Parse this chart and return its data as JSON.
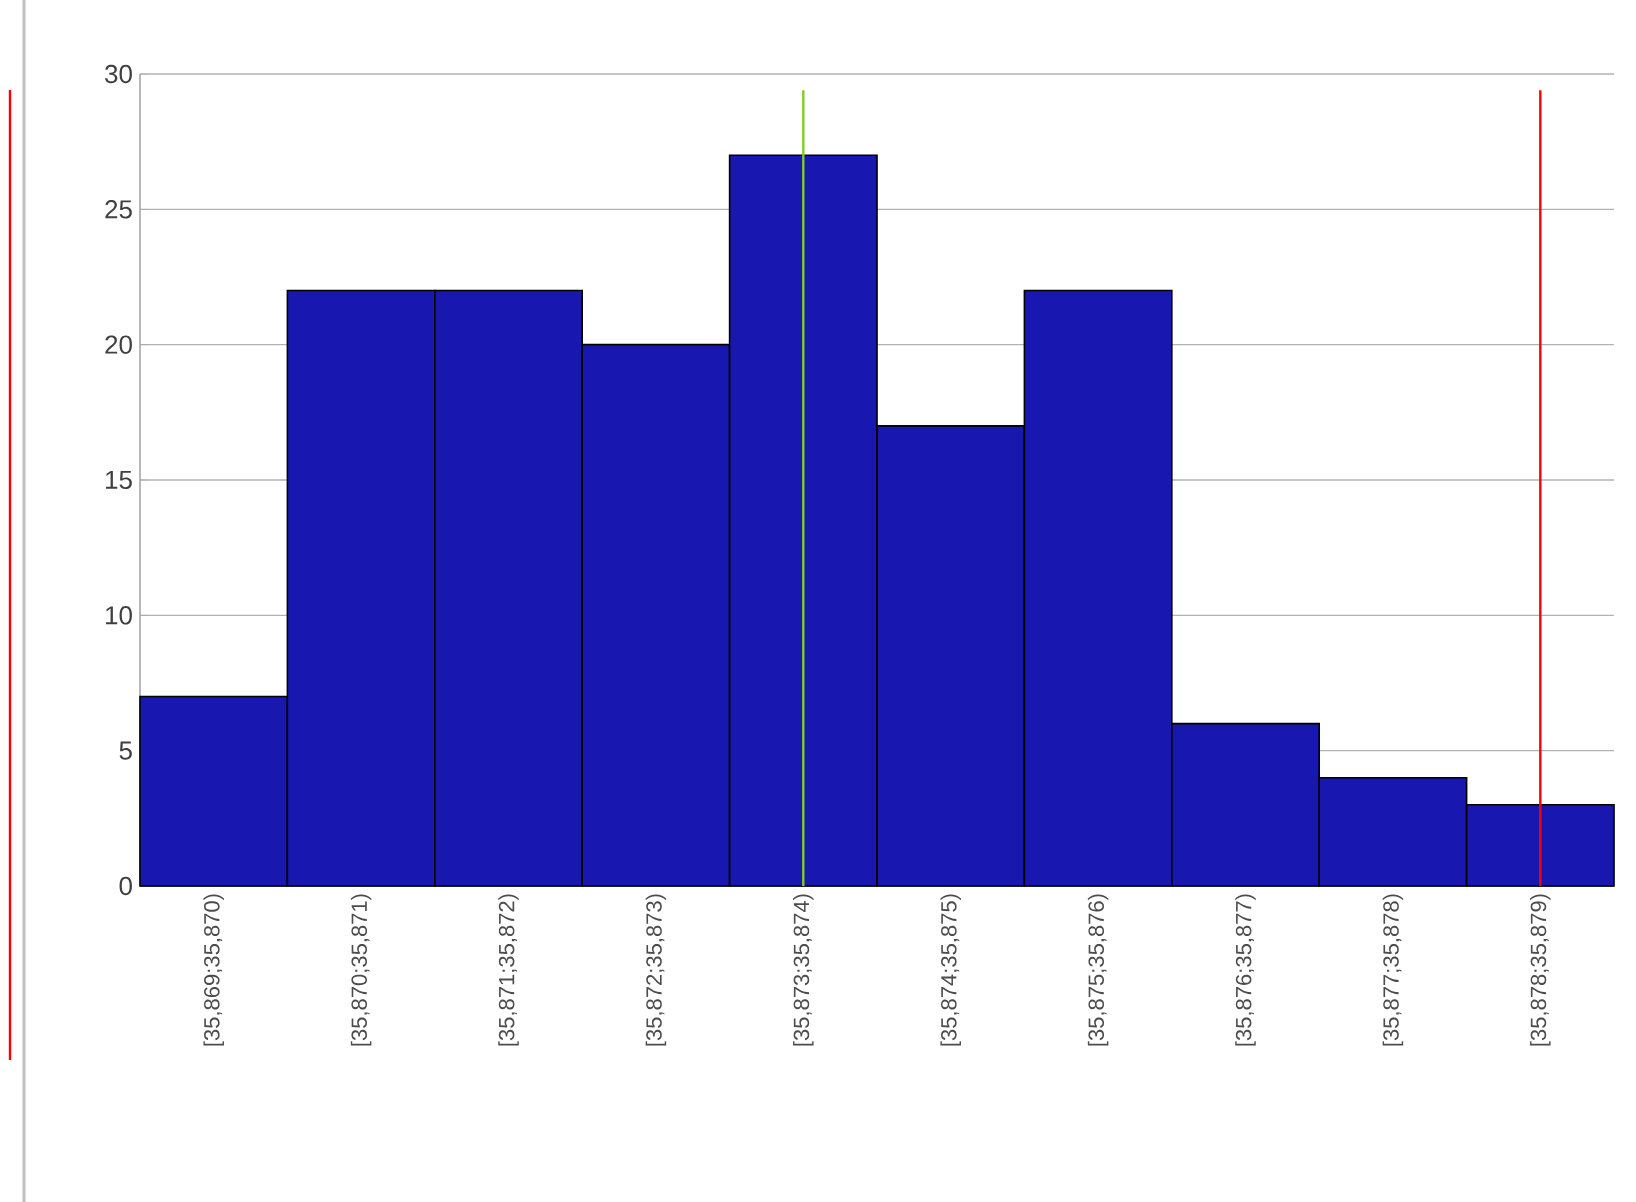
{
  "chart_data": {
    "type": "bar",
    "categories": [
      "[35,869;35,870)",
      "[35,870;35,871)",
      "[35,871;35,872)",
      "[35,872;35,873)",
      "[35,873;35,874)",
      "[35,874;35,875)",
      "[35,875;35,876)",
      "[35,876;35,877)",
      "[35,877;35,878)",
      "[35,878;35,879)"
    ],
    "values": [
      7,
      22,
      22,
      20,
      27,
      17,
      22,
      6,
      4,
      3
    ],
    "color": "#1818b0",
    "ylim": [
      0,
      30
    ],
    "yticks": [
      0,
      5,
      10,
      15,
      20,
      25,
      30
    ],
    "grid": "y",
    "ref_lines": [
      {
        "axis": "x",
        "value": "[35,873;35,874)",
        "color": "#7fcc2a"
      },
      {
        "axis": "x",
        "value": "[35,878;35,879)",
        "color": "#ff0000"
      }
    ]
  }
}
